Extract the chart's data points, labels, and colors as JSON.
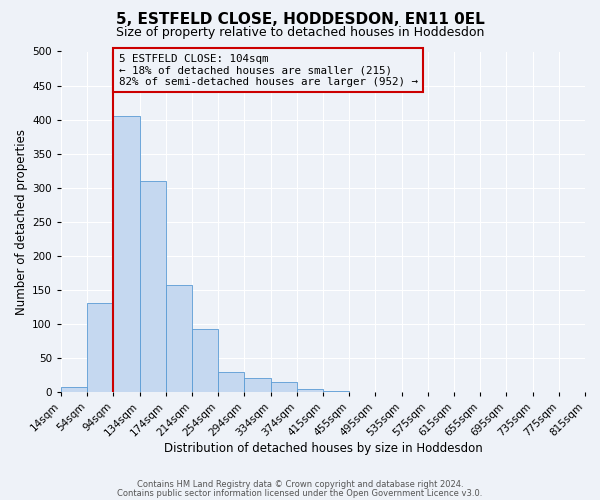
{
  "title": "5, ESTFELD CLOSE, HODDESDON, EN11 0EL",
  "subtitle": "Size of property relative to detached houses in Hoddesdon",
  "xlabel": "Distribution of detached houses by size in Hoddesdon",
  "ylabel": "Number of detached properties",
  "bar_values": [
    7,
    130,
    405,
    310,
    157,
    92,
    30,
    21,
    14,
    5,
    1,
    0,
    0,
    0,
    0,
    0,
    0,
    0,
    0,
    0
  ],
  "bar_labels": [
    "14sqm",
    "54sqm",
    "94sqm",
    "134sqm",
    "174sqm",
    "214sqm",
    "254sqm",
    "294sqm",
    "334sqm",
    "374sqm",
    "415sqm",
    "455sqm",
    "495sqm",
    "535sqm",
    "575sqm",
    "615sqm",
    "655sqm",
    "695sqm",
    "735sqm",
    "775sqm",
    "815sqm"
  ],
  "bar_color": "#c5d8f0",
  "bar_edge_color": "#5a9bd5",
  "ylim": [
    0,
    500
  ],
  "yticks": [
    0,
    50,
    100,
    150,
    200,
    250,
    300,
    350,
    400,
    450,
    500
  ],
  "vline_x": 2,
  "vline_color": "#cc0000",
  "annotation_title": "5 ESTFELD CLOSE: 104sqm",
  "annotation_line1": "← 18% of detached houses are smaller (215)",
  "annotation_line2": "82% of semi-detached houses are larger (952) →",
  "annotation_box_color": "#cc0000",
  "footer1": "Contains HM Land Registry data © Crown copyright and database right 2024.",
  "footer2": "Contains public sector information licensed under the Open Government Licence v3.0.",
  "bg_color": "#eef2f8",
  "grid_color": "#ffffff",
  "title_fontsize": 11,
  "subtitle_fontsize": 9,
  "axis_label_fontsize": 8.5,
  "tick_label_fontsize": 7.5
}
